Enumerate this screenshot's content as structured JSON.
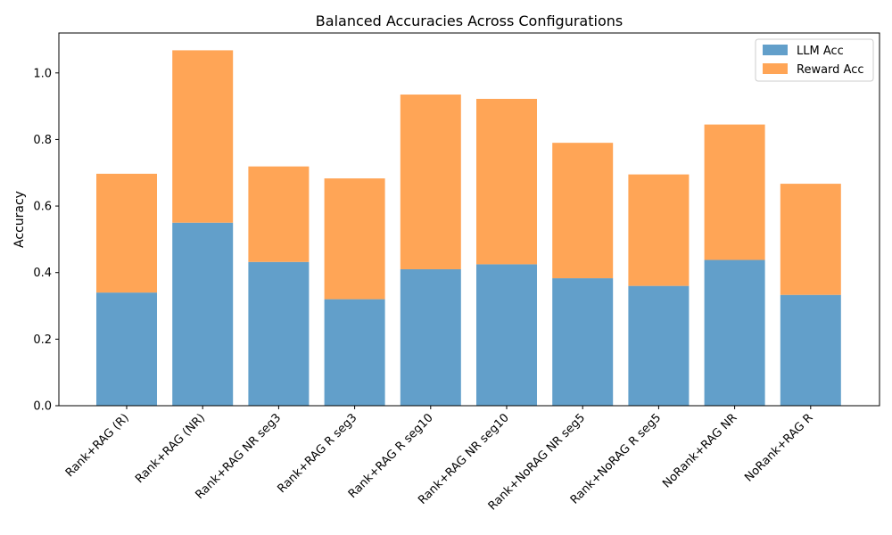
{
  "chart_data": {
    "type": "bar",
    "stacked": true,
    "title": "Balanced Accuracies Across Configurations",
    "xlabel": "",
    "ylabel": "Accuracy",
    "ylim": [
      0,
      1.12
    ],
    "yticks": [
      "0.0",
      "0.2",
      "0.4",
      "0.6",
      "0.8",
      "1.0"
    ],
    "grid": false,
    "legend_position": "top-right",
    "categories": [
      "Rank+RAG (R)",
      "Rank+RAG (NR)",
      "Rank+RAG NR seg3",
      "Rank+RAG R seg3",
      "Rank+RAG R seg10",
      "Rank+RAG NR seg10",
      "Rank+NoRAG NR seg5",
      "Rank+NoRAG R seg5",
      "NoRank+RAG NR",
      "NoRank+RAG R"
    ],
    "series": [
      {
        "name": "LLM Acc",
        "color": "#629fca",
        "values": [
          0.34,
          0.55,
          0.432,
          0.32,
          0.41,
          0.425,
          0.383,
          0.36,
          0.438,
          0.333
        ]
      },
      {
        "name": "Reward Acc",
        "color": "#ffa556",
        "values": [
          0.357,
          0.518,
          0.287,
          0.363,
          0.525,
          0.497,
          0.407,
          0.335,
          0.407,
          0.334
        ]
      }
    ]
  }
}
